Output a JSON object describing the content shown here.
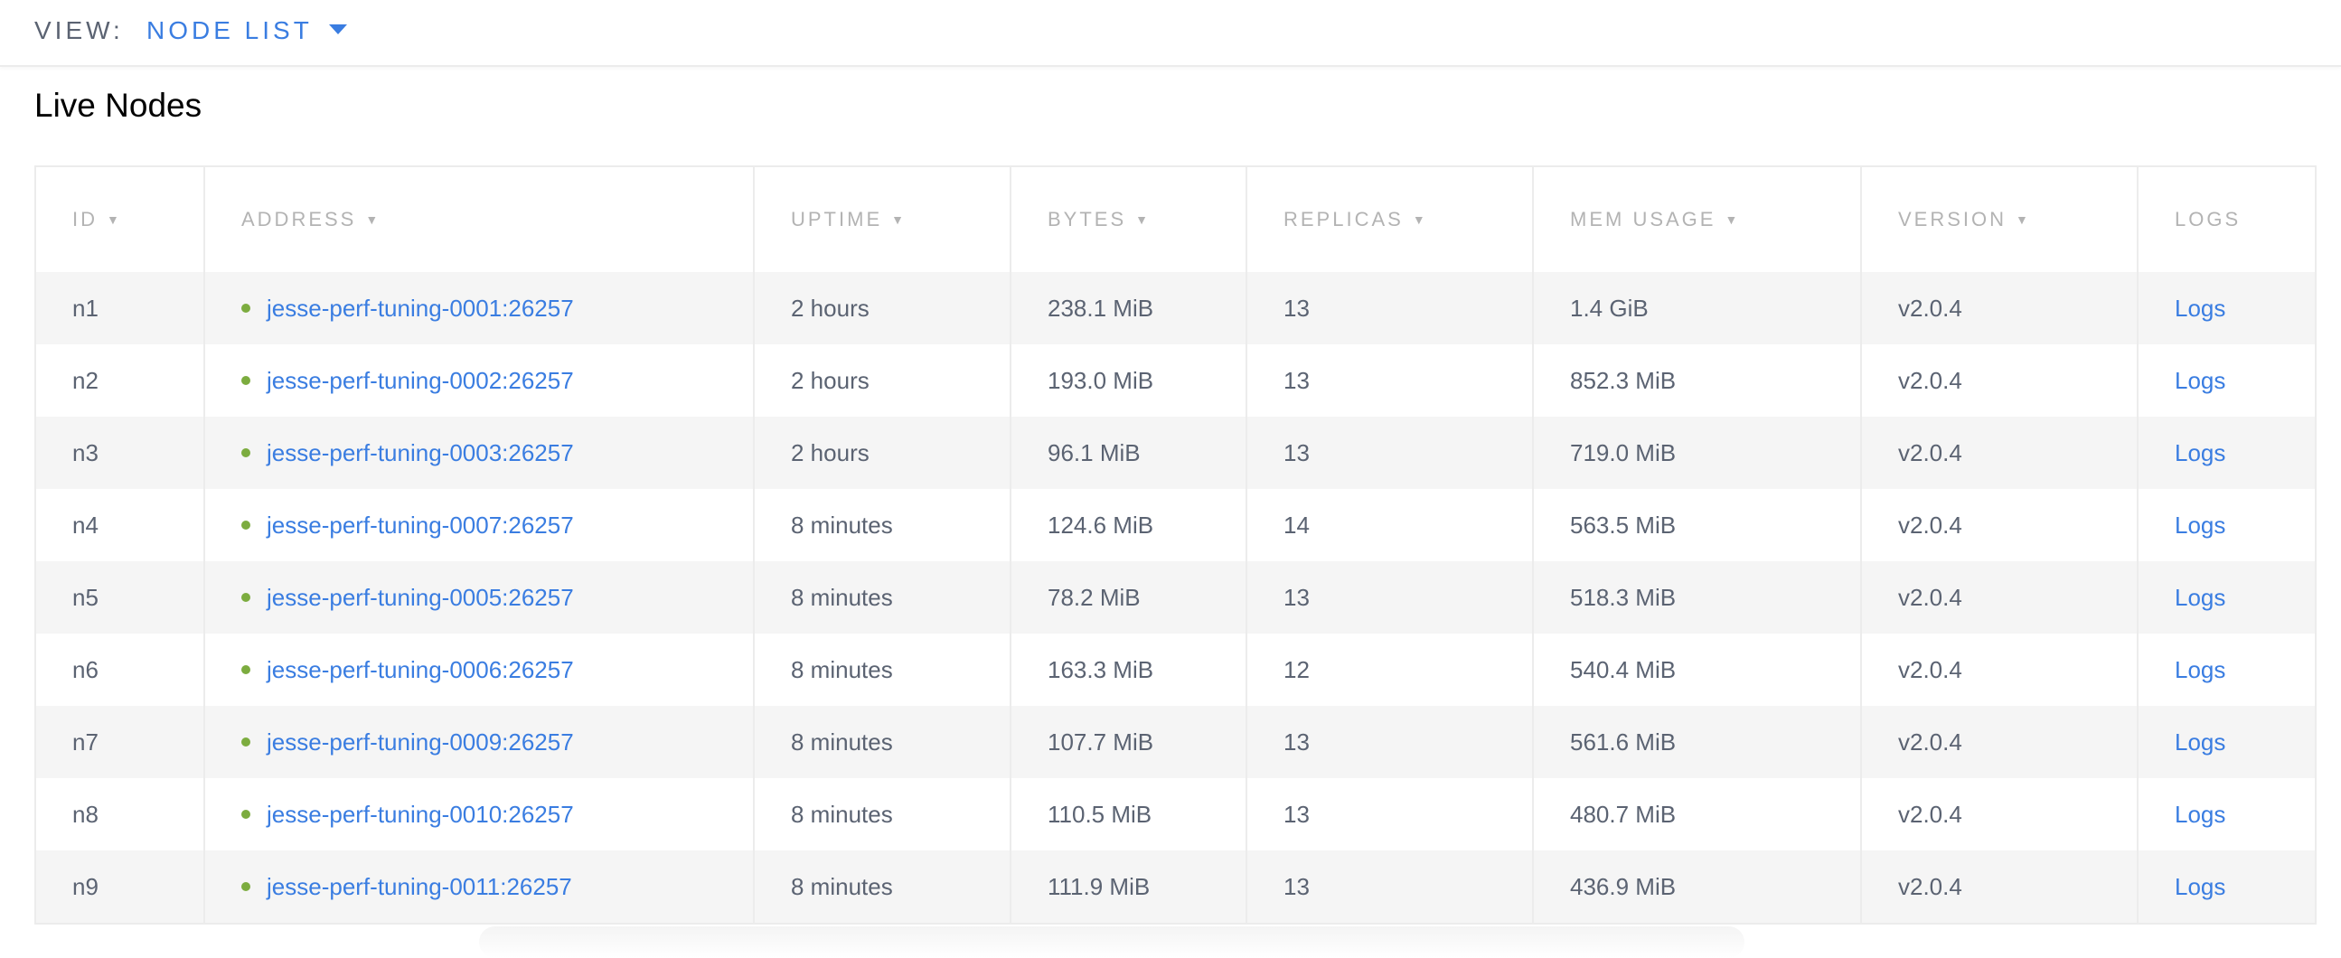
{
  "header": {
    "view_label": "VIEW:",
    "view_value": "NODE LIST",
    "icon": "caret-down-icon"
  },
  "title": "Live Nodes",
  "table": {
    "columns": [
      {
        "label": "ID",
        "sortable": true
      },
      {
        "label": "ADDRESS",
        "sortable": true
      },
      {
        "label": "UPTIME",
        "sortable": true
      },
      {
        "label": "BYTES",
        "sortable": true
      },
      {
        "label": "REPLICAS",
        "sortable": true
      },
      {
        "label": "MEM USAGE",
        "sortable": true
      },
      {
        "label": "VERSION",
        "sortable": true
      },
      {
        "label": "LOGS",
        "sortable": false
      }
    ],
    "sort_glyph": "▼",
    "rows": [
      {
        "id": "n1",
        "address": "jesse-perf-tuning-0001:26257",
        "uptime": "2 hours",
        "bytes": "238.1 MiB",
        "replicas": "13",
        "mem": "1.4 GiB",
        "version": "v2.0.4",
        "logs": "Logs"
      },
      {
        "id": "n2",
        "address": "jesse-perf-tuning-0002:26257",
        "uptime": "2 hours",
        "bytes": "193.0 MiB",
        "replicas": "13",
        "mem": "852.3 MiB",
        "version": "v2.0.4",
        "logs": "Logs"
      },
      {
        "id": "n3",
        "address": "jesse-perf-tuning-0003:26257",
        "uptime": "2 hours",
        "bytes": "96.1 MiB",
        "replicas": "13",
        "mem": "719.0 MiB",
        "version": "v2.0.4",
        "logs": "Logs"
      },
      {
        "id": "n4",
        "address": "jesse-perf-tuning-0007:26257",
        "uptime": "8 minutes",
        "bytes": "124.6 MiB",
        "replicas": "14",
        "mem": "563.5 MiB",
        "version": "v2.0.4",
        "logs": "Logs"
      },
      {
        "id": "n5",
        "address": "jesse-perf-tuning-0005:26257",
        "uptime": "8 minutes",
        "bytes": "78.2 MiB",
        "replicas": "13",
        "mem": "518.3 MiB",
        "version": "v2.0.4",
        "logs": "Logs"
      },
      {
        "id": "n6",
        "address": "jesse-perf-tuning-0006:26257",
        "uptime": "8 minutes",
        "bytes": "163.3 MiB",
        "replicas": "12",
        "mem": "540.4 MiB",
        "version": "v2.0.4",
        "logs": "Logs"
      },
      {
        "id": "n7",
        "address": "jesse-perf-tuning-0009:26257",
        "uptime": "8 minutes",
        "bytes": "107.7 MiB",
        "replicas": "13",
        "mem": "561.6 MiB",
        "version": "v2.0.4",
        "logs": "Logs"
      },
      {
        "id": "n8",
        "address": "jesse-perf-tuning-0010:26257",
        "uptime": "8 minutes",
        "bytes": "110.5 MiB",
        "replicas": "13",
        "mem": "480.7 MiB",
        "version": "v2.0.4",
        "logs": "Logs"
      },
      {
        "id": "n9",
        "address": "jesse-perf-tuning-0011:26257",
        "uptime": "8 minutes",
        "bytes": "111.9 MiB",
        "replicas": "13",
        "mem": "436.9 MiB",
        "version": "v2.0.4",
        "logs": "Logs"
      }
    ]
  },
  "colors": {
    "accent": "#3a7de1",
    "status_live": "#7cac3f",
    "text": "#5b6372",
    "header_text": "#b3b3b3",
    "stripe": "#f5f5f5"
  }
}
